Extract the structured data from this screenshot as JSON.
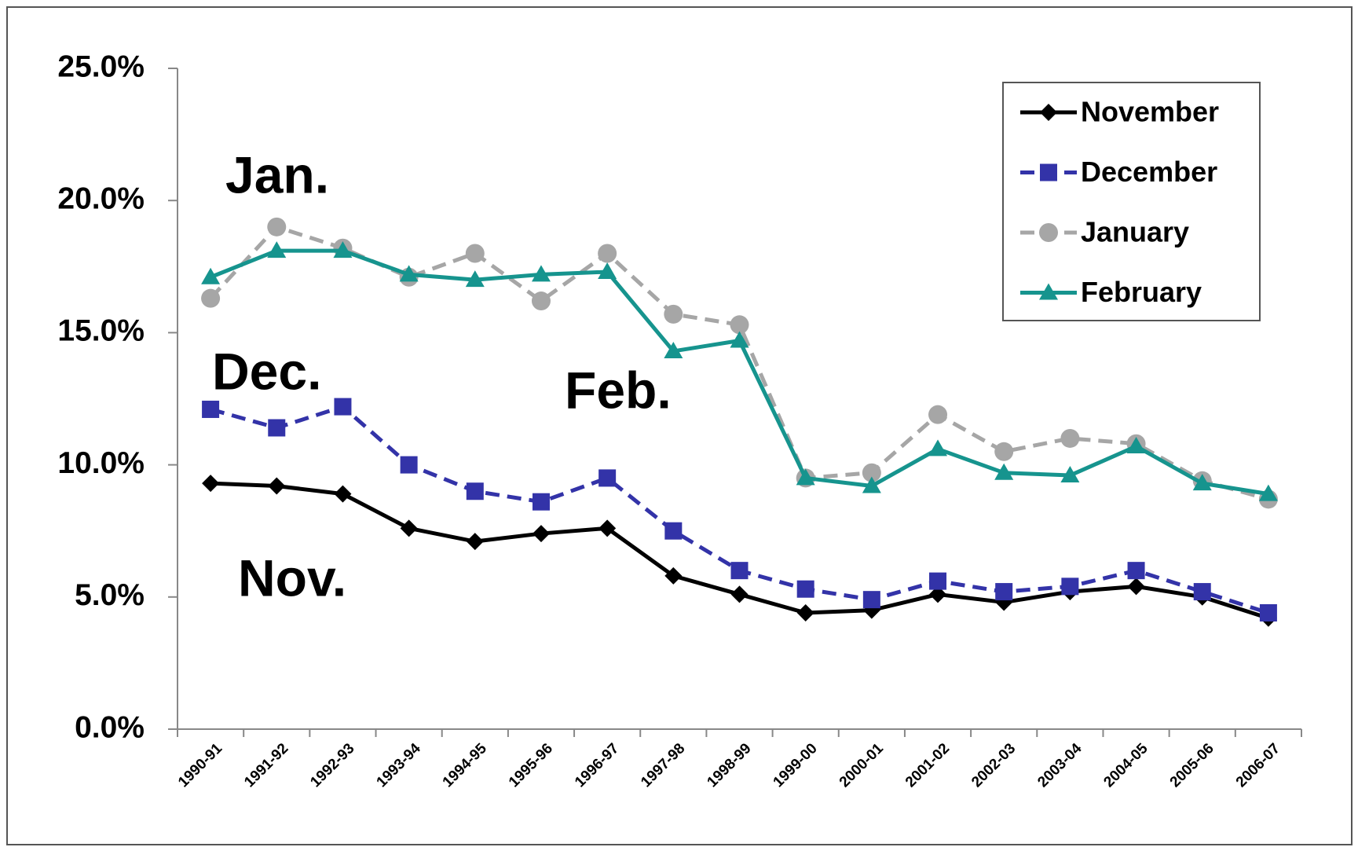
{
  "chart_data": {
    "type": "line",
    "categories": [
      "1990-91",
      "1991-92",
      "1992-93",
      "1993-94",
      "1994-95",
      "1995-96",
      "1996-97",
      "1997-98",
      "1998-99",
      "1999-00",
      "2000-01",
      "2001-02",
      "2002-03",
      "2003-04",
      "2004-05",
      "2005-06",
      "2006-07"
    ],
    "series": [
      {
        "name": "November",
        "color": "#000000",
        "marker": "diamond",
        "dashed": false,
        "values": [
          9.3,
          9.2,
          8.9,
          7.6,
          7.1,
          7.4,
          7.6,
          5.8,
          5.1,
          4.4,
          4.5,
          5.1,
          4.8,
          5.2,
          5.4,
          5.0,
          4.2
        ]
      },
      {
        "name": "December",
        "color": "#3333a8",
        "marker": "square",
        "dashed": true,
        "values": [
          12.1,
          11.4,
          12.2,
          10.0,
          9.0,
          8.6,
          9.5,
          7.5,
          6.0,
          5.3,
          4.9,
          5.6,
          5.2,
          5.4,
          6.0,
          5.2,
          4.4
        ]
      },
      {
        "name": "January",
        "color": "#a6a6a6",
        "marker": "circle",
        "dashed": true,
        "values": [
          16.3,
          19.0,
          18.2,
          17.1,
          18.0,
          16.2,
          18.0,
          15.7,
          15.3,
          9.5,
          9.7,
          11.9,
          10.5,
          11.0,
          10.8,
          9.4,
          8.7
        ]
      },
      {
        "name": "February",
        "color": "#16948e",
        "marker": "triangle",
        "dashed": false,
        "values": [
          17.1,
          18.1,
          18.1,
          17.2,
          17.0,
          17.2,
          17.3,
          14.3,
          14.7,
          9.5,
          9.2,
          10.6,
          9.7,
          9.6,
          10.7,
          9.3,
          8.9
        ]
      }
    ],
    "annotations": [
      "Jan.",
      "Dec.",
      "Feb.",
      "Nov."
    ],
    "ylim": [
      0,
      25
    ],
    "yticks": [
      {
        "value": 0,
        "label": "0.0%"
      },
      {
        "value": 5,
        "label": "5.0%"
      },
      {
        "value": 10,
        "label": "10.0%"
      },
      {
        "value": 15,
        "label": "15.0%"
      },
      {
        "value": 20,
        "label": "20.0%"
      },
      {
        "value": 25,
        "label": "25.0%"
      }
    ],
    "grid": false,
    "legend": "upper right"
  }
}
